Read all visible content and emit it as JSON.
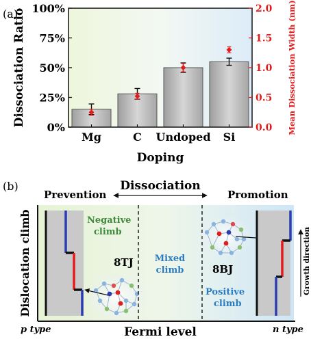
{
  "panel_a": {
    "panel_label": "(a)",
    "chart_data": {
      "type": "bar",
      "categories": [
        "Mg",
        "C",
        "Undoped",
        "Si"
      ],
      "series": [
        {
          "values": [
            15,
            28,
            50,
            55
          ],
          "errors": [
            4.5,
            4.5,
            4,
            3
          ]
        }
      ],
      "overlay": {
        "type": "scatter",
        "axis": "right",
        "values": [
          0.25,
          0.52,
          1.0,
          1.3
        ],
        "errors": [
          0.05,
          0.05,
          0.07,
          0.05
        ],
        "color": "#e21b1b"
      },
      "xlabel": "Doping",
      "ylabel": "Dissociation Ratio",
      "y2label": "Mean Dissociation Width (nm)",
      "ylim": [
        0,
        100
      ],
      "y2lim": [
        0,
        2.0
      ],
      "yticks": [
        "0%",
        "25%",
        "50%",
        "75%",
        "100%"
      ],
      "y2ticks": [
        "0.0",
        "0.5",
        "1.0",
        "1.5",
        "2.0"
      ],
      "bar_color": "#b0b0b0",
      "right_axis_color": "#e21b1b"
    }
  },
  "panel_b": {
    "panel_label": "(b)",
    "title": "Dissociation",
    "left_label": "Prevention",
    "right_label": "Promotion",
    "ylabel": "Dislocation climb",
    "xlabel": "Fermi level",
    "x_left": "p type",
    "x_right": "n type",
    "region_left_l1": "Negative",
    "region_left_l2": "climb",
    "region_mid_l1": "Mixed",
    "region_mid_l2": "climb",
    "region_right_l1": "Positive",
    "region_right_l2": "climb",
    "left_structure": "8TJ",
    "right_structure": "8BJ",
    "growth_direction": "Growth direction",
    "colors": {
      "green_text": "#3f8a3c",
      "blue_text": "#2b7cbf",
      "red": "#e21b1b",
      "blue": "#2a3cb0"
    }
  }
}
